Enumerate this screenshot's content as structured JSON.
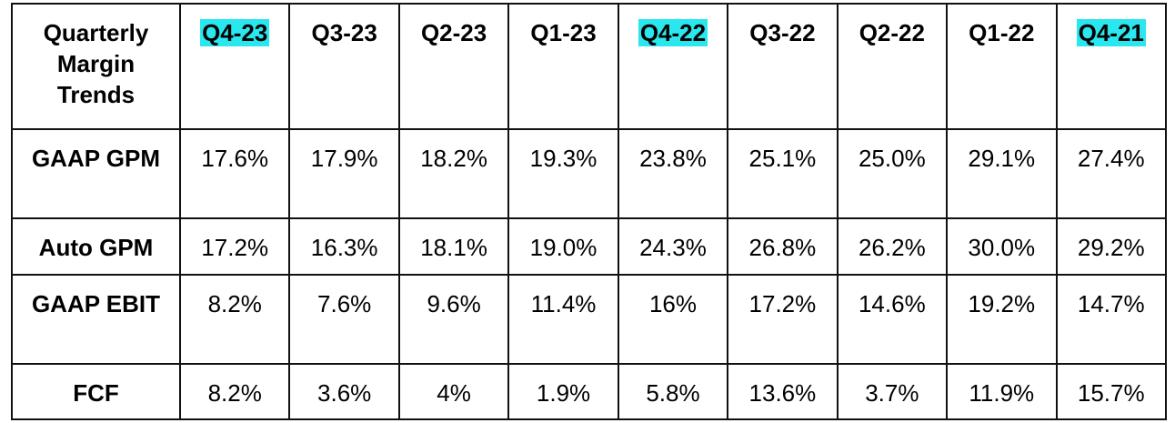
{
  "table": {
    "highlight_color": "#2ae6ee",
    "corner": "Quarterly Margin Trends",
    "columns": [
      {
        "label": "Q4-23",
        "highlight": true
      },
      {
        "label": "Q3-23",
        "highlight": false
      },
      {
        "label": "Q2-23",
        "highlight": false
      },
      {
        "label": "Q1-23",
        "highlight": false
      },
      {
        "label": "Q4-22",
        "highlight": true
      },
      {
        "label": "Q3-22",
        "highlight": false
      },
      {
        "label": "Q2-22",
        "highlight": false
      },
      {
        "label": "Q1-22",
        "highlight": false
      },
      {
        "label": "Q4-21",
        "highlight": true
      }
    ],
    "rows": [
      {
        "label": "GAAP GPM",
        "cells": [
          "17.6%",
          "17.9%",
          "18.2%",
          "19.3%",
          "23.8%",
          "25.1%",
          "25.0%",
          "29.1%",
          "27.4%"
        ]
      },
      {
        "label": "Auto GPM",
        "cells": [
          "17.2%",
          "16.3%",
          "18.1%",
          "19.0%",
          "24.3%",
          "26.8%",
          "26.2%",
          "30.0%",
          "29.2%"
        ]
      },
      {
        "label": "GAAP EBIT",
        "cells": [
          "8.2%",
          "7.6%",
          "9.6%",
          "11.4%",
          "16%",
          "17.2%",
          "14.6%",
          "19.2%",
          "14.7%"
        ]
      },
      {
        "label": "FCF",
        "cells": [
          "8.2%",
          "3.6%",
          "4%",
          "1.9%",
          "5.8%",
          "13.6%",
          "3.7%",
          "11.9%",
          "15.7%"
        ]
      }
    ]
  }
}
